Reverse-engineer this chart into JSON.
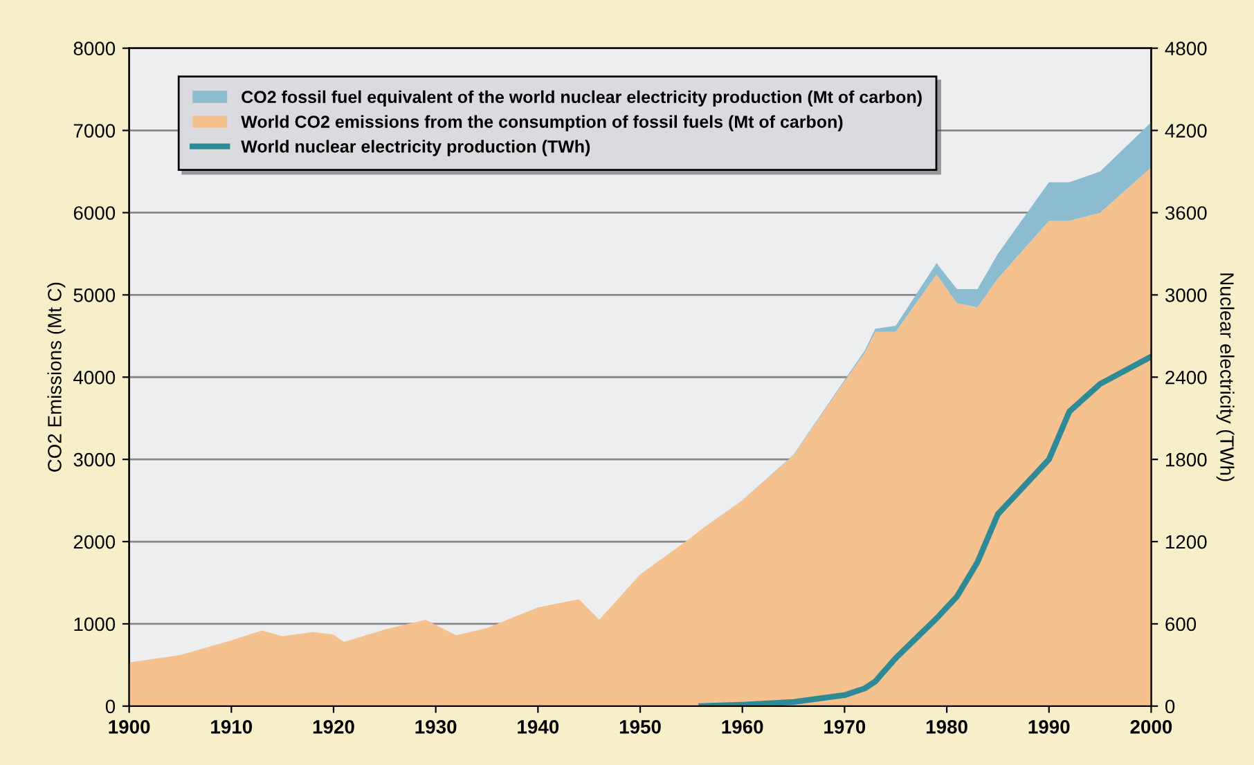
{
  "chart_data": {
    "type": "area",
    "stacked": true,
    "x": [
      1900,
      1905,
      1910,
      1913,
      1915,
      1918,
      1920,
      1921,
      1925,
      1929,
      1932,
      1935,
      1940,
      1944,
      1946,
      1950,
      1955,
      1956,
      1960,
      1965,
      1970,
      1972,
      1973,
      1975,
      1979,
      1981,
      1983,
      1985,
      1990,
      1992,
      1995,
      2000
    ],
    "series": [
      {
        "name": "World CO2 emissions from the consumption of fossil fuels (Mt of carbon)",
        "color": "#f4c18f",
        "values": [
          530,
          620,
          800,
          920,
          850,
          900,
          870,
          780,
          930,
          1050,
          860,
          950,
          1200,
          1300,
          1050,
          1600,
          2050,
          2150,
          2500,
          3050,
          3950,
          4300,
          4550,
          4550,
          5250,
          4900,
          4850,
          5200,
          5900,
          5900,
          6000,
          6550
        ]
      },
      {
        "name": "CO2 fossil fuel equivalent of the world nuclear electricity production (Mt of carbon)",
        "color": "#8cbccf",
        "values": [
          0,
          0,
          0,
          0,
          0,
          0,
          0,
          0,
          0,
          0,
          0,
          0,
          0,
          0,
          0,
          0,
          0,
          0,
          2,
          6,
          17,
          28,
          38,
          75,
          135,
          170,
          220,
          300,
          470,
          470,
          500,
          550
        ]
      },
      {
        "name": "World nuclear electricity production (TWh)",
        "type": "line",
        "axis": "y2",
        "color": "#2f8a98",
        "values": [
          null,
          null,
          null,
          null,
          null,
          null,
          null,
          null,
          null,
          null,
          null,
          null,
          null,
          null,
          null,
          null,
          null,
          0,
          10,
          30,
          80,
          130,
          180,
          350,
          640,
          800,
          1050,
          1400,
          1800,
          2150,
          2350,
          2550
        ]
      }
    ],
    "xlim": [
      1900,
      2000
    ],
    "xticks": [
      1900,
      1910,
      1920,
      1930,
      1940,
      1950,
      1960,
      1970,
      1980,
      1990,
      2000
    ],
    "ylim": [
      0,
      8000
    ],
    "yticks": [
      0,
      1000,
      2000,
      3000,
      4000,
      5000,
      6000,
      7000,
      8000
    ],
    "y2lim": [
      0,
      4800
    ],
    "y2ticks": [
      0,
      600,
      1200,
      1800,
      2400,
      3000,
      3600,
      4200,
      4800
    ],
    "ylabel": "CO2 Emissions (Mt C)",
    "y2label": "Nuclear electricity (TWh)",
    "grid": "y",
    "legend": "top left"
  }
}
